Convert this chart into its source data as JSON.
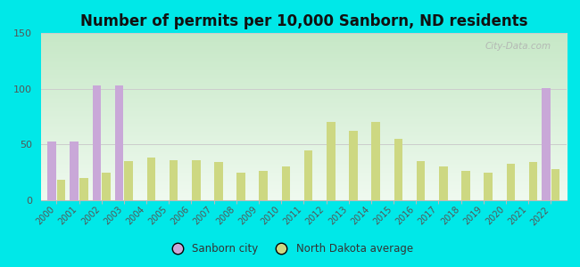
{
  "title": "Number of permits per 10,000 Sanborn, ND residents",
  "years": [
    2000,
    2001,
    2002,
    2003,
    2004,
    2005,
    2006,
    2007,
    2008,
    2009,
    2010,
    2011,
    2012,
    2013,
    2014,
    2015,
    2016,
    2017,
    2018,
    2019,
    2020,
    2021,
    2022
  ],
  "sanborn": [
    53,
    53,
    103,
    103,
    0,
    0,
    0,
    0,
    0,
    0,
    0,
    0,
    0,
    0,
    0,
    0,
    0,
    0,
    0,
    0,
    0,
    0,
    101
  ],
  "nd_avg": [
    18,
    20,
    25,
    35,
    38,
    36,
    36,
    34,
    25,
    26,
    30,
    45,
    70,
    62,
    70,
    55,
    35,
    30,
    26,
    25,
    33,
    34,
    28
  ],
  "sanborn_color": "#c9a8d8",
  "nd_avg_color": "#cdd882",
  "background_color": "#00e8e8",
  "plot_bg_gradient_top": "#c8e8c8",
  "plot_bg_gradient_bottom": "#f0faf0",
  "ylim": [
    0,
    150
  ],
  "yticks": [
    0,
    50,
    100,
    150
  ],
  "bar_width": 0.38,
  "legend_sanborn": "Sanborn city",
  "legend_nd": "North Dakota average",
  "watermark": "City-Data.com",
  "title_fontsize": 12,
  "tick_fontsize": 7,
  "ytick_fontsize": 8
}
